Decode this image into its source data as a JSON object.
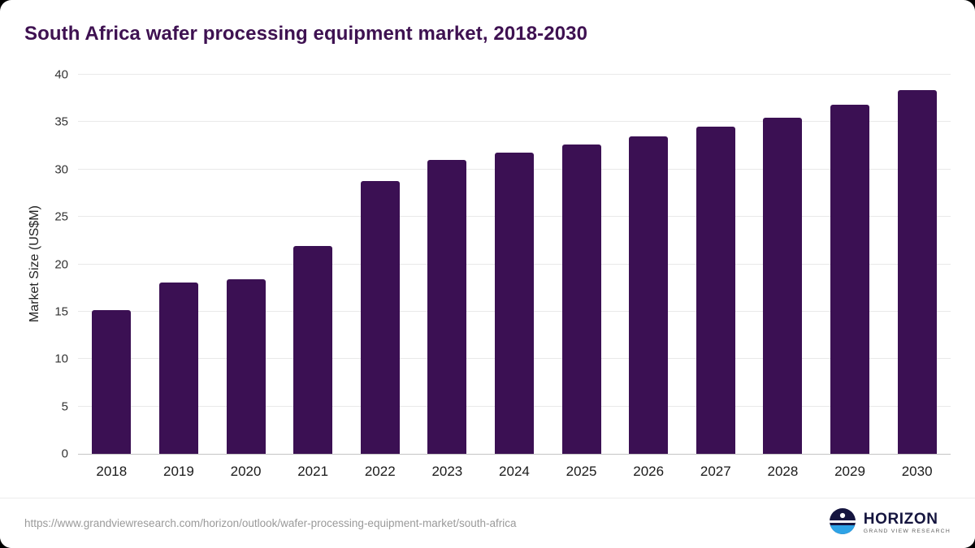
{
  "chart_data": {
    "type": "bar",
    "title": "South Africa wafer processing equipment market, 2018-2030",
    "xlabel": "",
    "ylabel": "Market Size (US$M)",
    "categories": [
      "2018",
      "2019",
      "2020",
      "2021",
      "2022",
      "2023",
      "2024",
      "2025",
      "2026",
      "2027",
      "2028",
      "2029",
      "2030"
    ],
    "values": [
      15.2,
      18.1,
      18.4,
      21.9,
      28.8,
      31.0,
      31.8,
      32.6,
      33.5,
      34.5,
      35.5,
      36.8,
      38.4
    ],
    "ylim": [
      0,
      40
    ],
    "yticks": [
      0,
      5,
      10,
      15,
      20,
      25,
      30,
      35,
      40
    ],
    "grid": true,
    "legend": "none",
    "bar_color": "#3b1053"
  },
  "footer": {
    "source_url": "https://www.grandviewresearch.com/horizon/outlook/wafer-processing-equipment-market/south-africa",
    "logo_title": "HORIZON",
    "logo_subtitle": "GRAND VIEW RESEARCH"
  },
  "colors": {
    "title_text": "#3e1151",
    "bar": "#3b1053",
    "gridline": "#e9e9e9",
    "axis_line": "#c4c4c4",
    "tick_text": "#333333",
    "url_text": "#9a9a9a",
    "logo_navy": "#15153f",
    "logo_blue": "#2ea3e6"
  }
}
